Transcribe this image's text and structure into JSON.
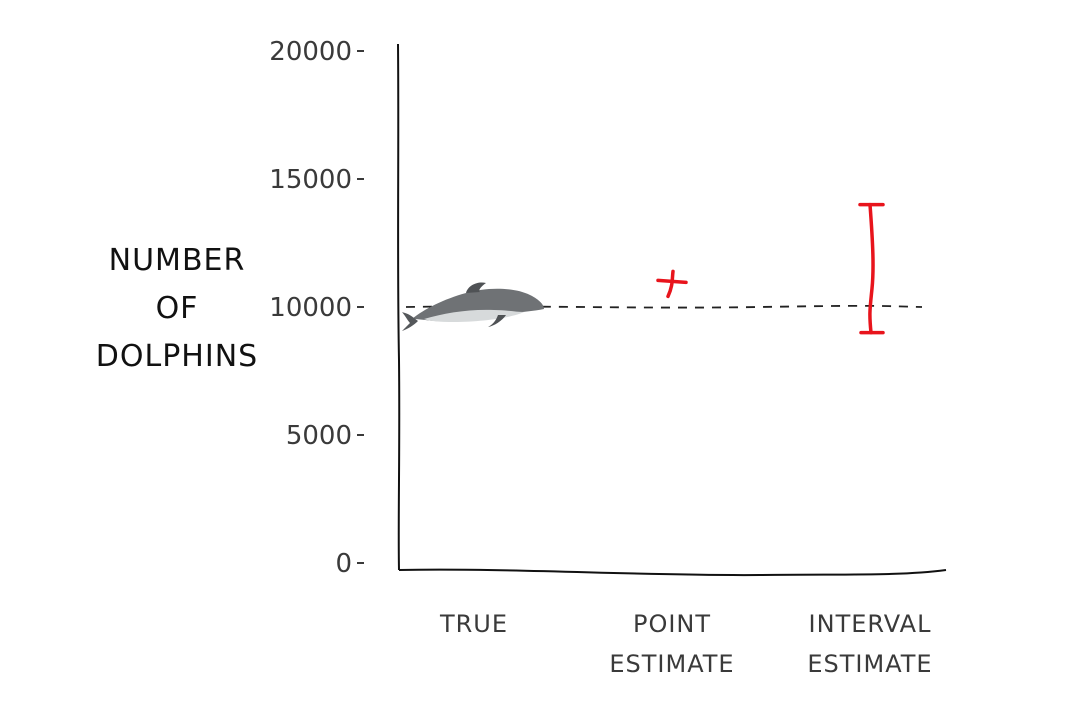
{
  "chart_data": {
    "type": "scatter",
    "ylabel_lines": [
      "NUMBER",
      "OF",
      "DOLPHINS"
    ],
    "ylim": [
      0,
      20000
    ],
    "yticks": [
      {
        "value": 0,
        "label": "0"
      },
      {
        "value": 5000,
        "label": "5000"
      },
      {
        "value": 10000,
        "label": "10000"
      },
      {
        "value": 15000,
        "label": "15000"
      },
      {
        "value": 20000,
        "label": "20000"
      }
    ],
    "categories": [
      {
        "key": "true",
        "lines": [
          "TRUE"
        ]
      },
      {
        "key": "point",
        "lines": [
          "POINT",
          "ESTIMATE"
        ]
      },
      {
        "key": "interval",
        "lines": [
          "INTERVAL",
          "ESTIMATE"
        ]
      }
    ],
    "true_value": 10000,
    "point_estimate": 11000,
    "interval_estimate": {
      "low": 9000,
      "high": 14000
    },
    "reference_line": {
      "value": 10000,
      "style": "dashed"
    },
    "grid": false,
    "colors": {
      "axis": "#111111",
      "text": "#3a3a3a",
      "estimate": "#e8141c",
      "dolphin_body": "#6f7275",
      "dolphin_belly": "#d7dadb"
    },
    "icons": {
      "true_marker": "dolphin-icon"
    }
  }
}
